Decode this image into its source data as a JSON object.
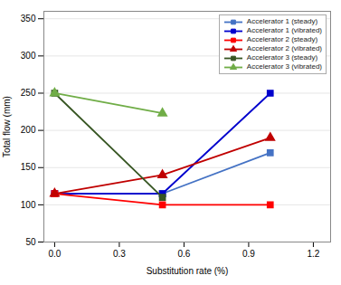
{
  "chart_data": {
    "type": "line",
    "xlabel": "Substitution rate (%)",
    "ylabel": "Total flow (mm)",
    "x": [
      0,
      0.5,
      1.0
    ],
    "series": [
      {
        "name": "Accelerator 1 (steady)",
        "color": "#4472c4",
        "marker": "square",
        "line_style": "solid",
        "values": [
          115,
          115,
          170
        ]
      },
      {
        "name": "Accelerator 1 (vibrated)",
        "color": "#0000cd",
        "marker": "square",
        "line_style": "solid",
        "values": [
          115,
          115,
          250
        ]
      },
      {
        "name": "Accelerator 2 (steady)",
        "color": "#ff0000",
        "marker": "square",
        "line_style": "solid",
        "values": [
          115,
          100,
          100
        ]
      },
      {
        "name": "Accelerator 2 (vibrated)",
        "color": "#c00000",
        "marker": "triangle",
        "line_style": "solid",
        "values": [
          115,
          140,
          190
        ]
      },
      {
        "name": "Accelerator 3 (steady)",
        "color": "#375623",
        "marker": "square",
        "line_style": "solid",
        "values": [
          250,
          110,
          null
        ]
      },
      {
        "name": "Accelerator 3 (vibrated)",
        "color": "#70ad47",
        "marker": "triangle",
        "line_style": "solid",
        "values": [
          250,
          223,
          null
        ]
      }
    ],
    "xlim": [
      -0.05,
      1.28
    ],
    "ylim": [
      50,
      360
    ],
    "xticks": [
      0,
      0.3,
      0.6,
      0.9,
      1.2
    ],
    "yticks": [
      50,
      100,
      150,
      200,
      250,
      300,
      350
    ],
    "grid": "y",
    "legend": "upper right"
  }
}
